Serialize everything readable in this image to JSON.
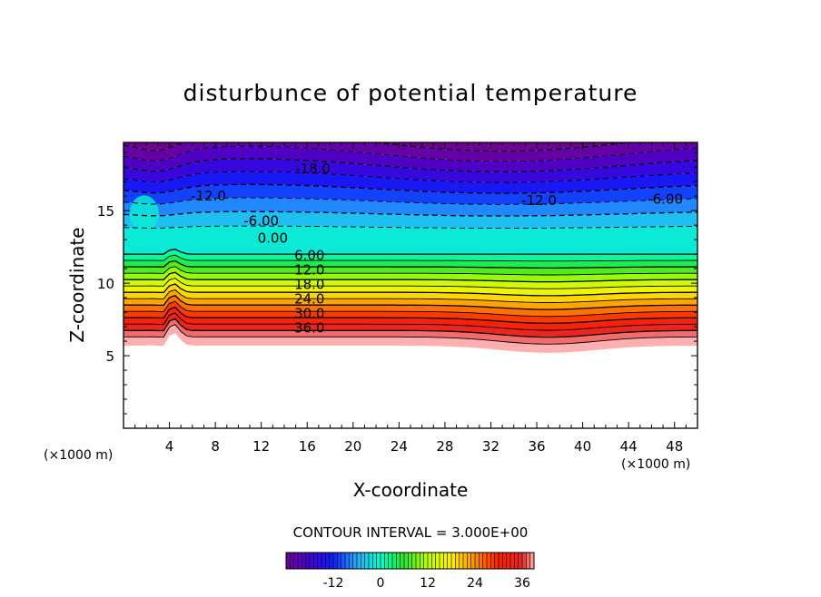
{
  "chart_data": {
    "type": "contour",
    "title": "disturbunce of potential temperature",
    "xlabel": "X-coordinate",
    "ylabel": "Z-coordinate",
    "x_unit_left": "(×1000 m)",
    "x_unit_right": "(×1000 m)",
    "xlim": [
      0,
      50
    ],
    "ylim": [
      0,
      19.7
    ],
    "x_ticks": [
      "4",
      "8",
      "12",
      "16",
      "20",
      "24",
      "28",
      "32",
      "36",
      "40",
      "44",
      "48"
    ],
    "x_tick_values": [
      4,
      8,
      12,
      16,
      20,
      24,
      28,
      32,
      36,
      40,
      44,
      48
    ],
    "y_ticks": [
      "5",
      "10",
      "15"
    ],
    "y_tick_values": [
      5,
      10,
      15
    ],
    "contour_interval_text": "CONTOUR INTERVAL = 3.000E+00",
    "contour_interval": 3,
    "levels": [
      -24,
      -21,
      -18,
      -15,
      -12,
      -9,
      -6,
      -3,
      0,
      3,
      6,
      9,
      12,
      15,
      18,
      21,
      24,
      27,
      30,
      33,
      36,
      39
    ],
    "contour_labels": [
      {
        "text": "-18.0",
        "x": 16.5,
        "z": 17.9
      },
      {
        "text": "-12.0",
        "x": 7.4,
        "z": 16.0
      },
      {
        "text": "-12.0",
        "x": 36.2,
        "z": 15.7
      },
      {
        "text": "-6.00",
        "x": 47.2,
        "z": 15.8
      },
      {
        "text": "-6.00",
        "x": 12.0,
        "z": 14.3
      },
      {
        "text": "0.00",
        "x": 13.0,
        "z": 13.1
      },
      {
        "text": "6.00",
        "x": 16.2,
        "z": 11.9
      },
      {
        "text": "12.0",
        "x": 16.2,
        "z": 10.9
      },
      {
        "text": "18.0",
        "x": 16.2,
        "z": 9.9
      },
      {
        "text": "24.0",
        "x": 16.2,
        "z": 8.9
      },
      {
        "text": "30.0",
        "x": 16.2,
        "z": 7.9
      },
      {
        "text": "36.0",
        "x": 16.2,
        "z": 6.9
      }
    ],
    "colorbar": {
      "min": -24,
      "max": 39,
      "tick_labels": [
        "-12",
        "0",
        "12",
        "24",
        "36"
      ],
      "tick_values": [
        -12,
        0,
        12,
        24,
        36
      ]
    }
  }
}
